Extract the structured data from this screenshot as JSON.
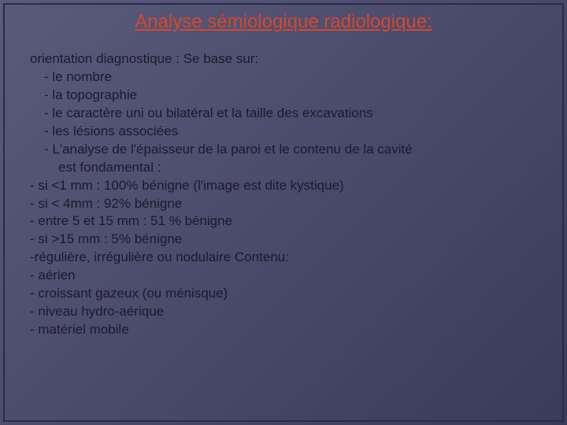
{
  "colors": {
    "background_start": "#5a5a7a",
    "background_end": "#3a3a5a",
    "title_color": "#d4482f",
    "body_color": "#1a1a2e",
    "border_color": "#2a2a4a"
  },
  "typography": {
    "font_family": "Comic Sans MS",
    "title_fontsize": 24,
    "body_fontsize": 17,
    "line_height": 1.35
  },
  "title": "Analyse sémiologique radiologique:",
  "lines": {
    "l0": "orientation diagnostique : Se base sur:",
    "l1": "- le nombre",
    "l2": "- la topographie",
    "l3": "- le caractère uni ou bilatéral et la taille des excavations",
    "l4": "- les lésions associées",
    "l5": "- L'analyse de l'épaisseur de la paroi et le contenu de la cavité",
    "l5b": "est fondamental :",
    "l6": "- si <1 mm : 100% bénigne (l'image est dite kystique)",
    "l7": "- si < 4mm : 92% bénigne",
    "l8": "- entre 5 et 15 mm : 51 % bénigne",
    "l9": "- si >15 mm : 5% bénigne",
    "l10": "-régulière, irrégulière ou nodulaire Contenu:",
    "l11": "- aérien",
    "l12": "- croissant gazeux (ou ménisque)",
    "l13": "- niveau hydro-aérique",
    "l14": "- matériel mobile"
  }
}
